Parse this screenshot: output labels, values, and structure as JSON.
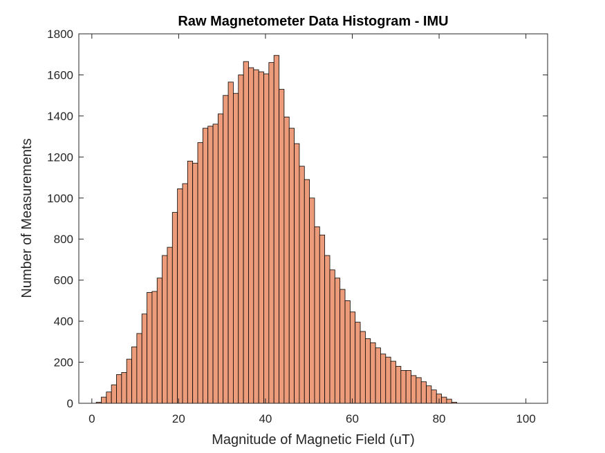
{
  "colors": {
    "bar_fill": "#EC9C7A",
    "bar_edge": "#000000",
    "axes": "#262626",
    "background": "#ffffff"
  },
  "chart_data": {
    "type": "bar",
    "subtype": "histogram",
    "title": "Raw Magnetometer Data Histogram - IMU",
    "xlabel": "Magnitude of Magnetic Field (uT)",
    "ylabel": "Number of Measurements",
    "xlim": [
      -3,
      105
    ],
    "ylim": [
      0,
      1800
    ],
    "xticks": [
      0,
      20,
      40,
      60,
      80,
      100
    ],
    "yticks": [
      0,
      200,
      400,
      600,
      800,
      1000,
      1200,
      1400,
      1600,
      1800
    ],
    "grid": false,
    "bin_start": 1.0,
    "bin_width": 1.17,
    "values": [
      5,
      30,
      55,
      90,
      140,
      150,
      215,
      275,
      340,
      435,
      540,
      545,
      610,
      720,
      760,
      930,
      1045,
      1070,
      1180,
      1170,
      1270,
      1340,
      1350,
      1360,
      1410,
      1500,
      1565,
      1510,
      1600,
      1665,
      1635,
      1625,
      1615,
      1605,
      1660,
      1695,
      1530,
      1395,
      1340,
      1265,
      1155,
      1090,
      1000,
      860,
      820,
      720,
      650,
      610,
      555,
      500,
      445,
      395,
      350,
      315,
      295,
      270,
      240,
      225,
      205,
      180,
      160,
      160,
      135,
      125,
      105,
      85,
      65,
      45,
      30,
      20,
      5
    ]
  }
}
